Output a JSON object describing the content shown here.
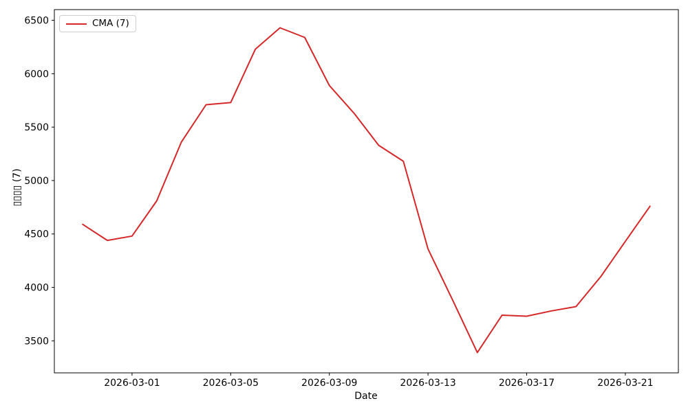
{
  "chart_data": {
    "type": "line",
    "title": "",
    "xlabel": "Date",
    "ylabel": "▯▯▯▯ (7)",
    "grid": false,
    "legend_position": "upper left",
    "x": [
      "2026-02-27",
      "2026-02-28",
      "2026-03-01",
      "2026-03-02",
      "2026-03-03",
      "2026-03-04",
      "2026-03-05",
      "2026-03-06",
      "2026-03-07",
      "2026-03-08",
      "2026-03-09",
      "2026-03-10",
      "2026-03-11",
      "2026-03-12",
      "2026-03-13",
      "2026-03-14",
      "2026-03-15",
      "2026-03-16",
      "2026-03-17",
      "2026-03-18",
      "2026-03-19",
      "2026-03-20",
      "2026-03-21",
      "2026-03-22"
    ],
    "series": [
      {
        "name": "CMA (7)",
        "color": "#d62728",
        "values": [
          4590,
          4440,
          4480,
          4810,
          5360,
          5710,
          5730,
          6230,
          6430,
          6340,
          5890,
          5630,
          5330,
          5180,
          4360,
          3880,
          3390,
          3740,
          3730,
          3780,
          3820,
          4100,
          4430,
          4760
        ]
      }
    ],
    "x_tick_labels": [
      "2026-03-01",
      "2026-03-05",
      "2026-03-09",
      "2026-03-13",
      "2026-03-17",
      "2026-03-21"
    ],
    "y_ticks": [
      3500,
      4000,
      4500,
      5000,
      5500,
      6000,
      6500
    ],
    "ylim": [
      3200,
      6600
    ],
    "xlim_days": [
      -1.15,
      24.15
    ]
  }
}
